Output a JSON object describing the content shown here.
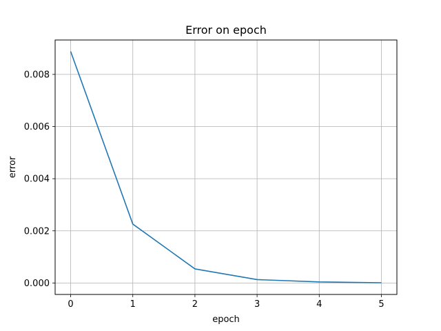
{
  "chart_data": {
    "type": "line",
    "title": "Error on epoch",
    "xlabel": "epoch",
    "ylabel": "error",
    "grid": true,
    "xlim": [
      -0.25,
      5.25
    ],
    "ylim": [
      -0.00044,
      0.00932
    ],
    "x_ticks": [
      0,
      1,
      2,
      3,
      4,
      5
    ],
    "x_tick_labels": [
      "0",
      "1",
      "2",
      "3",
      "4",
      "5"
    ],
    "y_ticks": [
      0.0,
      0.002,
      0.004,
      0.006,
      0.008
    ],
    "y_tick_labels": [
      "0.000",
      "0.002",
      "0.004",
      "0.006",
      "0.008"
    ],
    "series": [
      {
        "color": "#1f77b4",
        "x": [
          0,
          1,
          2,
          3,
          4,
          5
        ],
        "y": [
          0.00888,
          0.00226,
          0.00054,
          0.00013,
          4e-05,
          1e-05
        ]
      }
    ]
  }
}
